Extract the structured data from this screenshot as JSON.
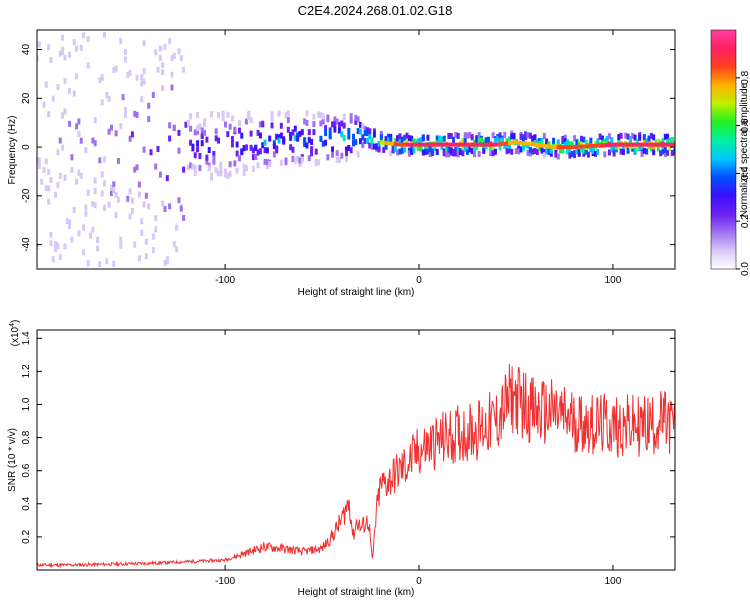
{
  "title": "C2E4.2024.268.01.02.G18",
  "chart_data": [
    {
      "type": "heatmap",
      "xlabel": "Height of straight line (km)",
      "ylabel": "Frequency (Hz)",
      "xlim": [
        -197,
        132
      ],
      "ylim": [
        -50,
        48
      ],
      "x_ticks": [
        -100,
        0,
        100
      ],
      "y_ticks": [
        -40,
        -20,
        0,
        20,
        40
      ],
      "colorbar": {
        "label": "Normalized spectral amplitude",
        "range": [
          0.0,
          1.0
        ],
        "ticks": [
          "0.0",
          "0.2",
          "0.4",
          "0.6",
          "0.8"
        ],
        "colors": [
          "#ffffff",
          "#d8c8f8",
          "#a070f0",
          "#6a20f0",
          "#3a10ff",
          "#0050ff",
          "#00c8ff",
          "#00f0a0",
          "#20f020",
          "#c0f000",
          "#ffb000",
          "#ff4020",
          "#ff2060",
          "#ff40a0"
        ]
      },
      "series": [
        {
          "x": [
            -197,
            -180,
            -160,
            -140,
            -120,
            -100,
            -80,
            -60,
            -40,
            -30,
            -20,
            -10,
            0,
            20,
            40,
            50,
            60,
            70,
            80,
            100,
            120,
            132
          ],
          "y": [
            0,
            0,
            0,
            0,
            0,
            1,
            2,
            3,
            4,
            5,
            2,
            1,
            1,
            1,
            1,
            2,
            1,
            0,
            0,
            1,
            1,
            1
          ],
          "amplitude": [
            0.15,
            0.15,
            0.2,
            0.25,
            0.3,
            0.4,
            0.45,
            0.5,
            0.55,
            0.6,
            0.7,
            0.85,
            0.95,
            0.95,
            0.9,
            0.75,
            0.8,
            0.8,
            0.85,
            0.9,
            0.95,
            0.95
          ]
        }
      ]
    },
    {
      "type": "line",
      "xlabel": "Height of straight line (km)",
      "ylabel": "SNR (10 * v/v)",
      "scale_label": "(x10",
      "scale_exponent": "4",
      "xlim": [
        -197,
        132
      ],
      "ylim": [
        0,
        1.45
      ],
      "x_ticks": [
        -100,
        0,
        100
      ],
      "y_ticks": [
        0.2,
        0.4,
        0.6,
        0.8,
        1.0,
        1.2,
        1.4
      ],
      "y_tick_labels": [
        "0.2",
        "0.4",
        "0.6",
        "0.8",
        "1.0",
        "1.2",
        "1.4"
      ],
      "color": "#f03030",
      "series": [
        {
          "x": [
            -197,
            -180,
            -160,
            -140,
            -120,
            -100,
            -90,
            -80,
            -70,
            -60,
            -50,
            -45,
            -40,
            -36,
            -34,
            -32,
            -30,
            -28,
            -26,
            -24,
            -22,
            -20,
            -15,
            -10,
            -5,
            0,
            5,
            10,
            20,
            30,
            40,
            48,
            55,
            60,
            70,
            80,
            90,
            100,
            110,
            120,
            125,
            132
          ],
          "y": [
            0.03,
            0.03,
            0.035,
            0.04,
            0.05,
            0.06,
            0.1,
            0.14,
            0.13,
            0.11,
            0.13,
            0.2,
            0.3,
            0.42,
            0.2,
            0.3,
            0.25,
            0.28,
            0.3,
            0.05,
            0.35,
            0.5,
            0.55,
            0.6,
            0.65,
            0.72,
            0.75,
            0.78,
            0.82,
            0.85,
            0.9,
            1.05,
            1.0,
            0.95,
            0.95,
            0.9,
            0.88,
            0.87,
            0.87,
            0.88,
            0.9,
            0.87
          ]
        }
      ]
    }
  ]
}
